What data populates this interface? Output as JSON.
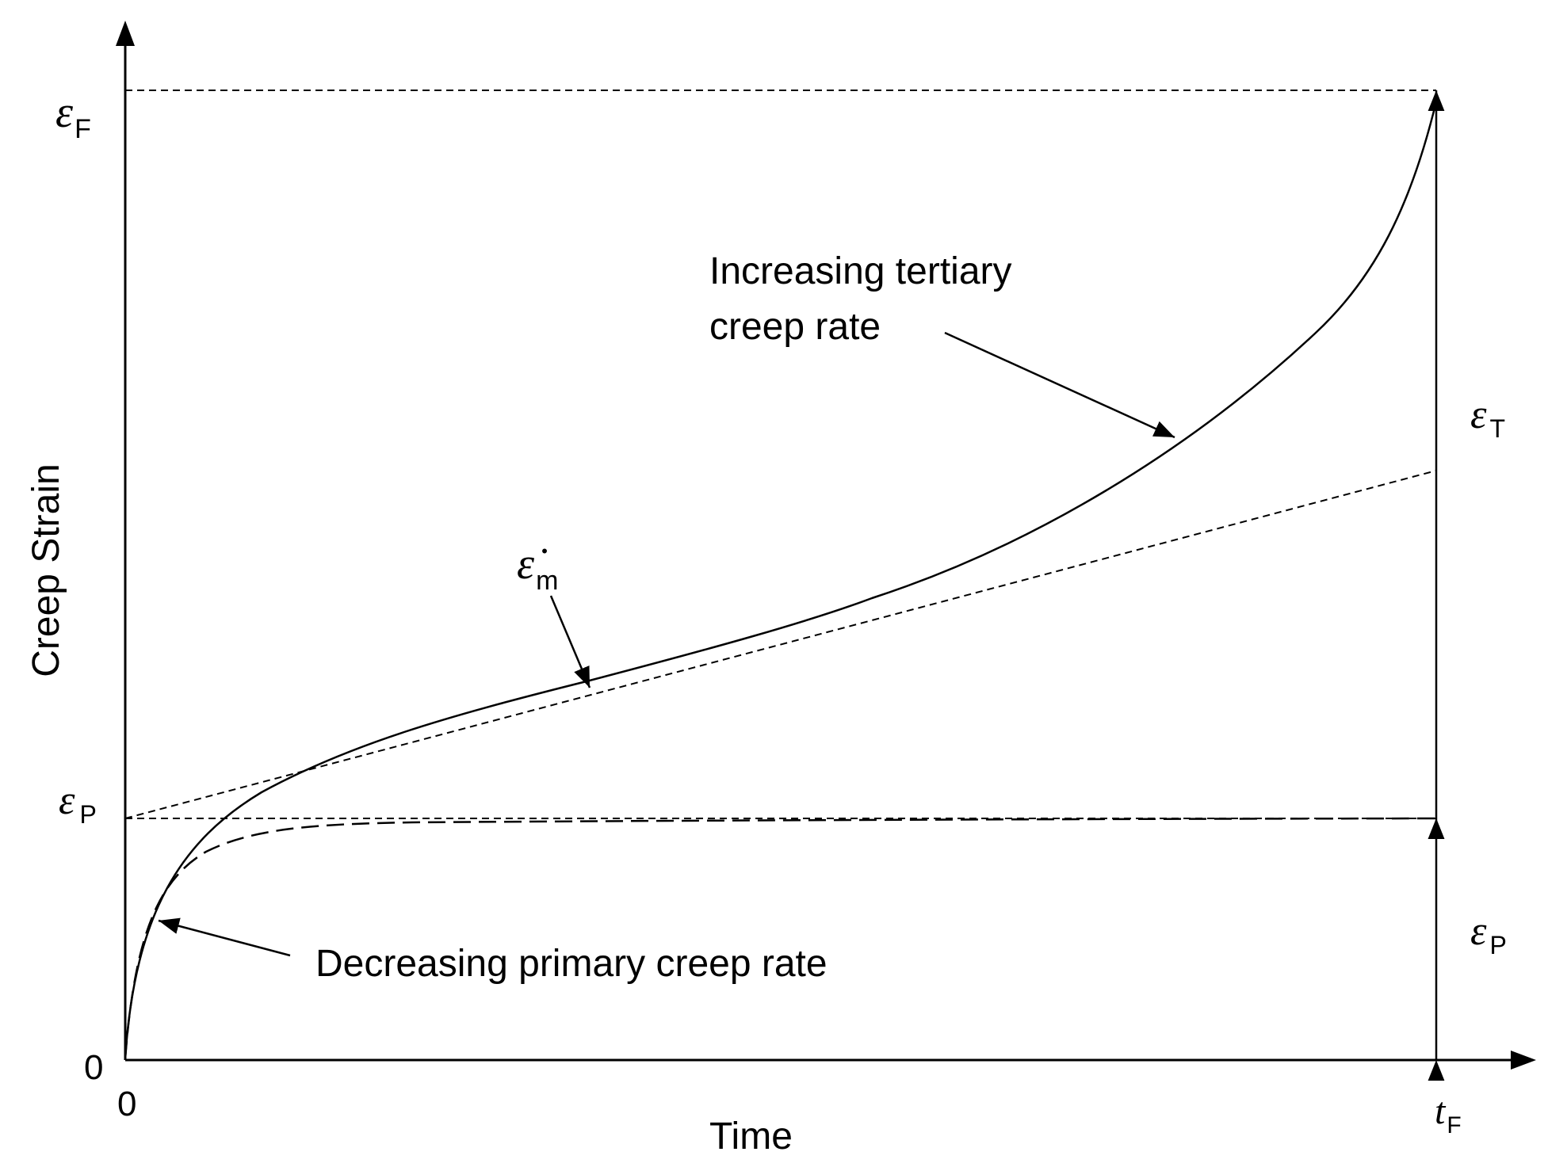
{
  "axes": {
    "x_label": "Time",
    "y_label": "Creep Strain",
    "x_origin_label": "0",
    "y_origin_label": "0",
    "x_end_symbol": "t",
    "x_end_subscript": "F"
  },
  "y_levels": {
    "failure": {
      "symbol": "ε",
      "subscript": "F"
    },
    "primary": {
      "symbol": "ε",
      "subscript": "P"
    }
  },
  "dimensions": {
    "tertiary": {
      "symbol": "ε",
      "subscript": "T"
    },
    "primary": {
      "symbol": "ε",
      "subscript": "P"
    }
  },
  "annotations": {
    "tertiary_rate": {
      "line1": "Increasing tertiary",
      "line2": "creep rate"
    },
    "minimum_rate": {
      "symbol": "ε̇",
      "subscript": "m"
    },
    "primary_rate": "Decreasing primary creep rate"
  },
  "colors": {
    "ink": "#000000",
    "background": "#ffffff"
  }
}
